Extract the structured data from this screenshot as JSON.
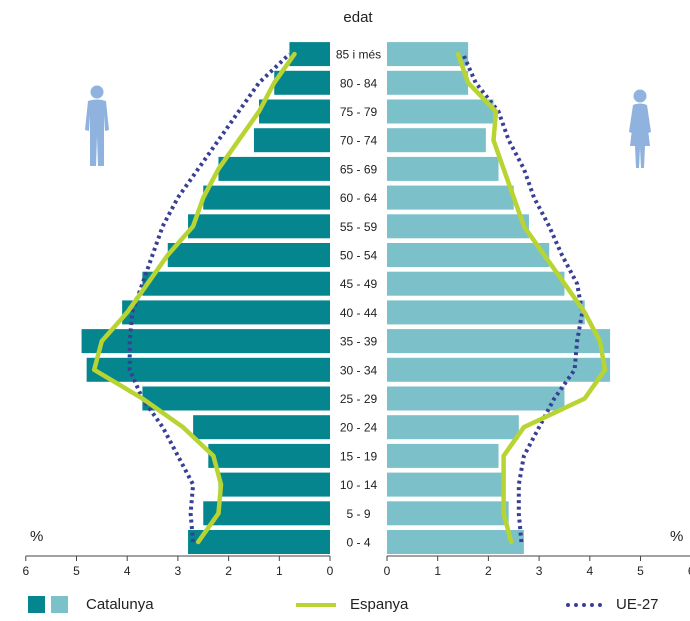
{
  "chart_data": {
    "type": "bar",
    "title": "edat",
    "unit_left": "%",
    "unit_right": "%",
    "categories": [
      "0 - 4",
      "5 - 9",
      "10 - 14",
      "15 - 19",
      "20 - 24",
      "25 - 29",
      "30 - 34",
      "35 - 39",
      "40 - 44",
      "45 - 49",
      "50 - 54",
      "55 - 59",
      "60 - 64",
      "65 - 69",
      "70 - 74",
      "75 - 79",
      "80 - 84",
      "85 i més"
    ],
    "xlim": [
      0,
      6
    ],
    "x_ticks": [
      6,
      5,
      4,
      3,
      2,
      1,
      0
    ],
    "series": [
      {
        "name": "Catalunya",
        "side": "male",
        "color": "#05868e",
        "values": [
          2.8,
          2.5,
          2.2,
          2.4,
          2.7,
          3.7,
          4.8,
          4.9,
          4.1,
          3.7,
          3.2,
          2.8,
          2.5,
          2.2,
          1.5,
          1.4,
          1.1,
          0.8
        ]
      },
      {
        "name": "Catalunya",
        "side": "female",
        "color": "#7cc1c9",
        "values": [
          2.7,
          2.4,
          2.3,
          2.2,
          2.6,
          3.5,
          4.4,
          4.4,
          3.9,
          3.5,
          3.2,
          2.8,
          2.5,
          2.2,
          1.95,
          2.1,
          1.6,
          1.6
        ]
      },
      {
        "name": "Espanya",
        "side": "male",
        "color": "#b8d432",
        "values": [
          2.6,
          2.2,
          2.15,
          2.3,
          2.9,
          3.7,
          4.65,
          4.5,
          4.0,
          3.6,
          3.2,
          2.7,
          2.5,
          2.2,
          1.8,
          1.4,
          1.1,
          0.7
        ]
      },
      {
        "name": "Espanya",
        "side": "female",
        "color": "#b8d432",
        "values": [
          2.45,
          2.3,
          2.3,
          2.3,
          2.7,
          3.9,
          4.3,
          4.2,
          3.9,
          3.5,
          3.1,
          2.7,
          2.5,
          2.3,
          2.1,
          2.15,
          1.6,
          1.4
        ]
      },
      {
        "name": "UE-27",
        "side": "male",
        "color": "#3a3f96",
        "values": [
          2.7,
          2.75,
          2.7,
          3.0,
          3.3,
          3.7,
          3.95,
          3.95,
          3.9,
          3.7,
          3.5,
          3.3,
          3.0,
          2.6,
          2.2,
          1.8,
          1.4,
          0.8
        ]
      },
      {
        "name": "UE-27",
        "side": "female",
        "color": "#3a3f96",
        "values": [
          2.65,
          2.6,
          2.6,
          2.7,
          3.0,
          3.3,
          3.7,
          3.75,
          3.85,
          3.75,
          3.45,
          3.2,
          2.9,
          2.7,
          2.4,
          2.2,
          1.75,
          1.5
        ]
      }
    ],
    "legend_position": "bottom",
    "grid": false
  },
  "legend": {
    "catalunya": "Catalunya",
    "espanya": "Espanya",
    "ue27": "UE-27",
    "colors": {
      "dark": "#05868e",
      "light": "#7cc1c9",
      "espanya": "#b8d432",
      "ue27": "#3a3f96"
    }
  },
  "icons": {
    "male": "man-figure-icon",
    "female": "woman-figure-icon"
  }
}
